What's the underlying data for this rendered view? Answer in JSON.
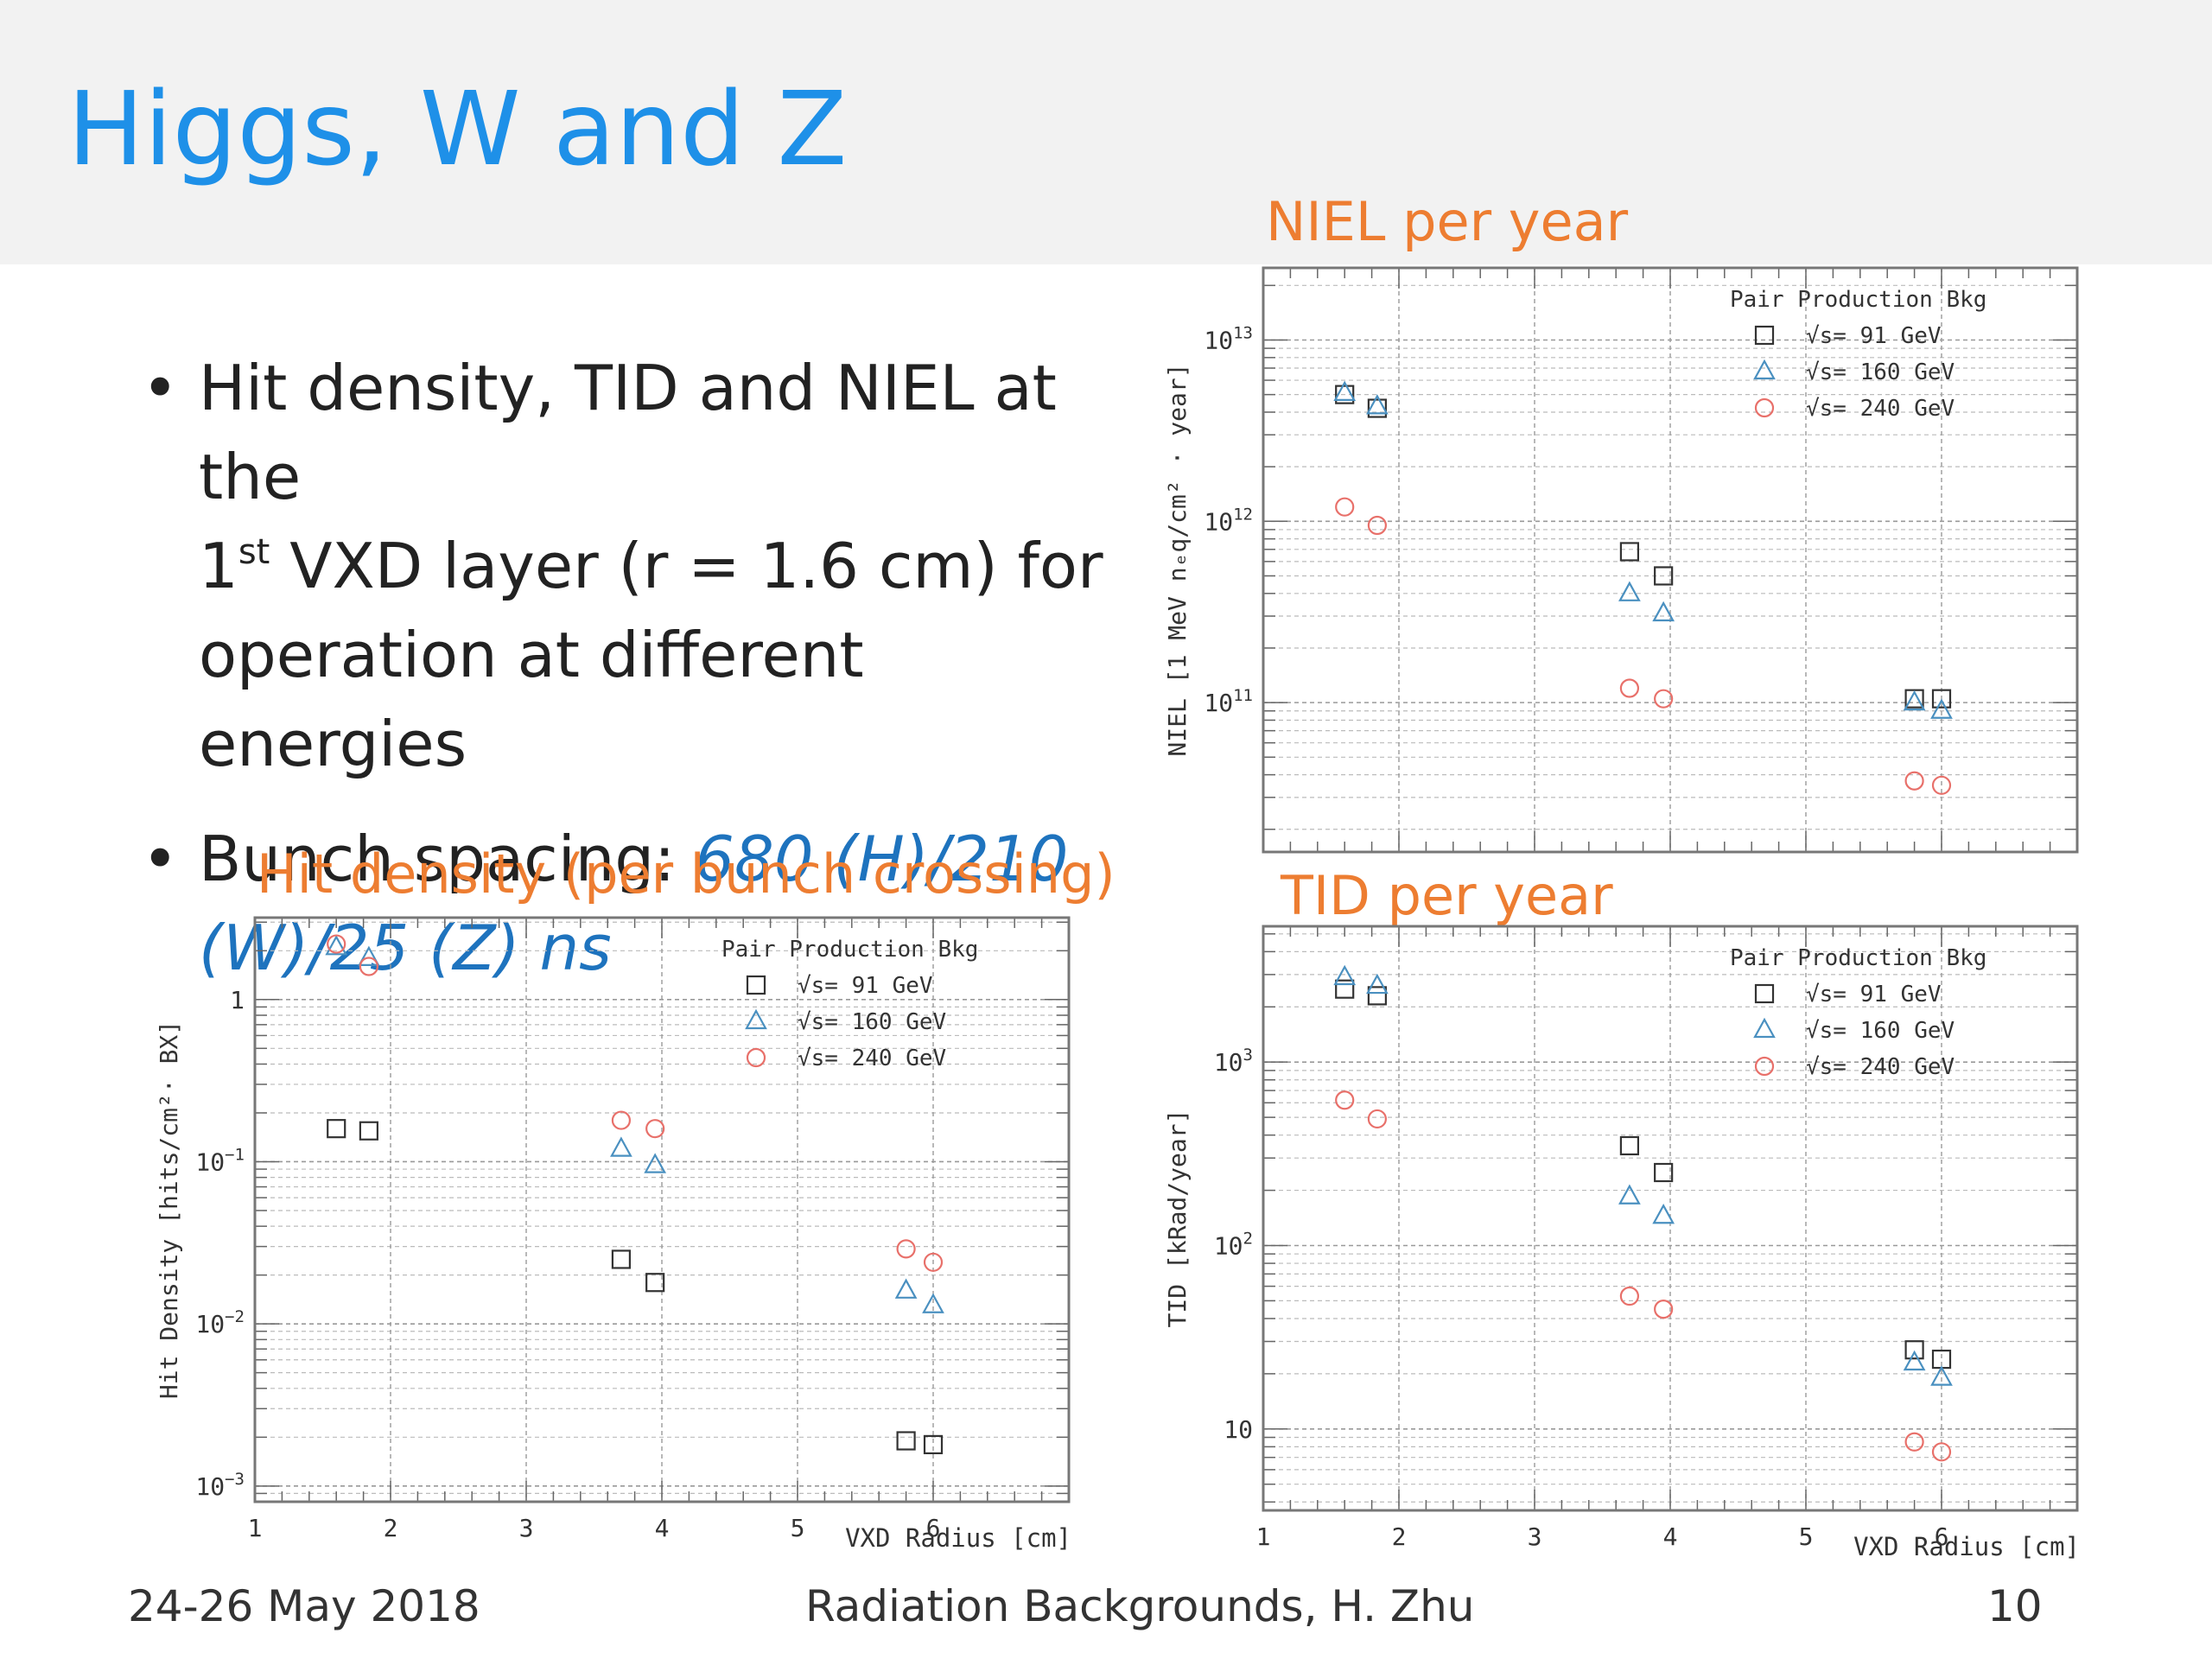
{
  "slide": {
    "title": "Higgs, W and Z",
    "bullet1_a": "Hit density, TID and NIEL at the",
    "bullet1_b": "1",
    "bullet1_sup": "st",
    "bullet1_c": " VXD layer (r = 1.6 cm) for",
    "bullet1_d": "operation at different energies",
    "bullet2_a": "Bunch spacing: ",
    "bullet2_b": "680 (H)/210",
    "bullet2_c": "(W)/25 (Z) ns",
    "bullet_marker": "•"
  },
  "footer": {
    "date": "24-26 May 2018",
    "center": "Radiation Backgrounds, H. Zhu",
    "page": "10"
  },
  "colors": {
    "title": "#1e90e8",
    "plot_title": "#ed7d31",
    "s91": "#333333",
    "s160": "#4a90c0",
    "s240": "#e8706a"
  },
  "chart_data": [
    {
      "id": "hit",
      "type": "scatter",
      "title": "Hit density (per bunch crossing)",
      "xlabel": "VXD Radius  [cm]",
      "ylabel": "Hit Density [hits/cm²· BX]",
      "log_y": true,
      "xlim": [
        1,
        7
      ],
      "ylim": [
        0.0008,
        3.2
      ],
      "xticks": [
        1,
        2,
        3,
        4,
        5,
        6
      ],
      "yticks": [
        {
          "v": 1,
          "base": "1",
          "exp": ""
        },
        {
          "v": 0.1,
          "base": "10",
          "exp": "−1"
        },
        {
          "v": 0.01,
          "base": "10",
          "exp": "−2"
        },
        {
          "v": 0.001,
          "base": "10",
          "exp": "−3"
        }
      ],
      "legend": {
        "title": "Pair Production Bkg",
        "position": "top-right"
      },
      "series": [
        {
          "name": "√s= 91 GeV",
          "marker": "square",
          "color": "#333333",
          "x": [
            1.6,
            1.84,
            3.7,
            3.95,
            5.8,
            6.0
          ],
          "y": [
            0.16,
            0.155,
            0.025,
            0.018,
            0.0019,
            0.0018
          ]
        },
        {
          "name": "√s= 160 GeV",
          "marker": "triangle",
          "color": "#4a90c0",
          "x": [
            1.6,
            1.84,
            3.7,
            3.95,
            5.8,
            6.0
          ],
          "y": [
            2.1,
            1.8,
            0.12,
            0.095,
            0.016,
            0.013
          ]
        },
        {
          "name": "√s= 240 GeV",
          "marker": "circle",
          "color": "#e8706a",
          "x": [
            1.6,
            1.84,
            3.7,
            3.95,
            5.8,
            6.0
          ],
          "y": [
            2.2,
            1.6,
            0.18,
            0.16,
            0.029,
            0.024
          ]
        }
      ]
    },
    {
      "id": "niel",
      "type": "scatter",
      "title": "NIEL per year",
      "xlabel": "",
      "ylabel": "NIEL [1 MeV nₑq/cm² · year]",
      "log_y": true,
      "xlim": [
        1,
        7
      ],
      "ylim": [
        15000000000,
        25000000000000
      ],
      "xticks": [],
      "yticks": [
        {
          "v": 10000000000000,
          "base": "10",
          "exp": "13"
        },
        {
          "v": 1000000000000,
          "base": "10",
          "exp": "12"
        },
        {
          "v": 100000000000,
          "base": "10",
          "exp": "11"
        }
      ],
      "legend": {
        "title": "Pair Production Bkg",
        "position": "top-right"
      },
      "series": [
        {
          "name": "√s= 91 GeV",
          "marker": "square",
          "color": "#333333",
          "x": [
            1.6,
            1.84,
            3.7,
            3.95,
            5.8,
            6.0
          ],
          "y": [
            5000000000000,
            4200000000000,
            680000000000,
            500000000000,
            105000000000,
            105000000000
          ]
        },
        {
          "name": "√s= 160 GeV",
          "marker": "triangle",
          "color": "#4a90c0",
          "x": [
            1.6,
            1.84,
            3.7,
            3.95,
            5.8,
            6.0
          ],
          "y": [
            5100000000000,
            4300000000000,
            400000000000,
            310000000000,
            100000000000,
            90000000000
          ]
        },
        {
          "name": "√s= 240 GeV",
          "marker": "circle",
          "color": "#e8706a",
          "x": [
            1.6,
            1.84,
            3.7,
            3.95,
            5.8,
            6.0
          ],
          "y": [
            1200000000000,
            950000000000,
            120000000000,
            105000000000,
            37000000000,
            35000000000
          ]
        }
      ]
    },
    {
      "id": "tid",
      "type": "scatter",
      "title": "TID per year",
      "xlabel": "VXD Radius  [cm]",
      "ylabel": "TID  [kRad/year]",
      "log_y": true,
      "xlim": [
        1,
        7
      ],
      "ylim": [
        3.6,
        5500
      ],
      "xticks": [
        1,
        2,
        3,
        4,
        5,
        6
      ],
      "yticks": [
        {
          "v": 1000,
          "base": "10",
          "exp": "3"
        },
        {
          "v": 100,
          "base": "10",
          "exp": "2"
        },
        {
          "v": 10,
          "base": "10",
          "exp": ""
        }
      ],
      "legend": {
        "title": "Pair Production Bkg",
        "position": "top-right"
      },
      "series": [
        {
          "name": "√s= 91 GeV",
          "marker": "square",
          "color": "#333333",
          "x": [
            1.6,
            1.84,
            3.7,
            3.95,
            5.8,
            6.0
          ],
          "y": [
            2500,
            2300,
            350,
            250,
            27,
            24
          ]
        },
        {
          "name": "√s= 160 GeV",
          "marker": "triangle",
          "color": "#4a90c0",
          "x": [
            1.6,
            1.84,
            3.7,
            3.95,
            5.8,
            6.0
          ],
          "y": [
            2900,
            2600,
            185,
            145,
            23,
            19
          ]
        },
        {
          "name": "√s= 240 GeV",
          "marker": "circle",
          "color": "#e8706a",
          "x": [
            1.6,
            1.84,
            3.7,
            3.95,
            5.8,
            6.0
          ],
          "y": [
            620,
            490,
            53,
            45,
            8.5,
            7.5
          ]
        }
      ]
    }
  ]
}
